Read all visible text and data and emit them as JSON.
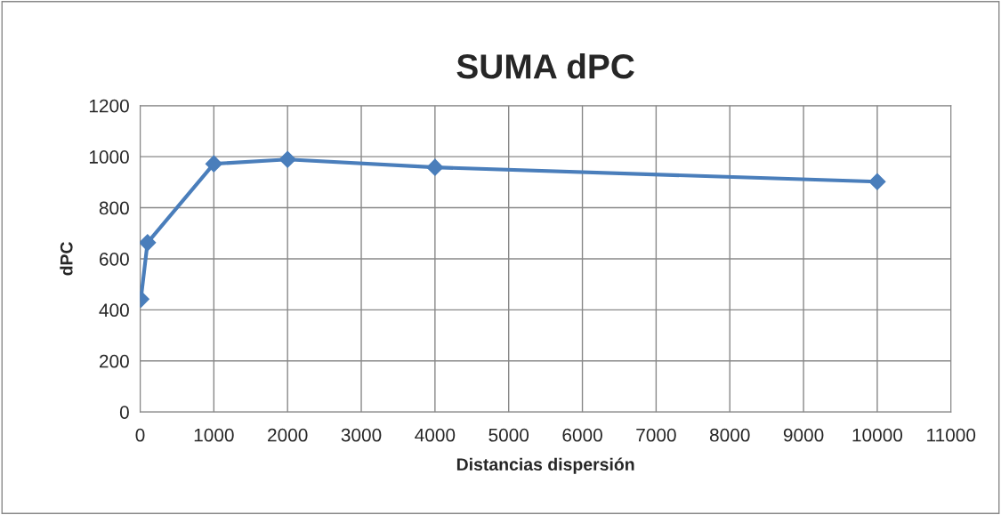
{
  "chart_data": {
    "type": "line",
    "title": "SUMA dPC",
    "xlabel": "Distancias dispersión",
    "ylabel": "dPC",
    "x": [
      10,
      100,
      1000,
      2000,
      4000,
      10000
    ],
    "series": [
      {
        "color": "#4a7ebb",
        "values": [
          442,
          663,
          972,
          989,
          958,
          902
        ]
      }
    ],
    "xlim": [
      0,
      11000
    ],
    "xticks": [
      0,
      1000,
      2000,
      3000,
      4000,
      5000,
      6000,
      7000,
      8000,
      9000,
      10000,
      11000
    ],
    "ylim": [
      0,
      1200
    ],
    "yticks": [
      0,
      200,
      400,
      600,
      800,
      1000,
      1200
    ],
    "grid": true,
    "marker": "diamond",
    "line_style": "solid"
  }
}
